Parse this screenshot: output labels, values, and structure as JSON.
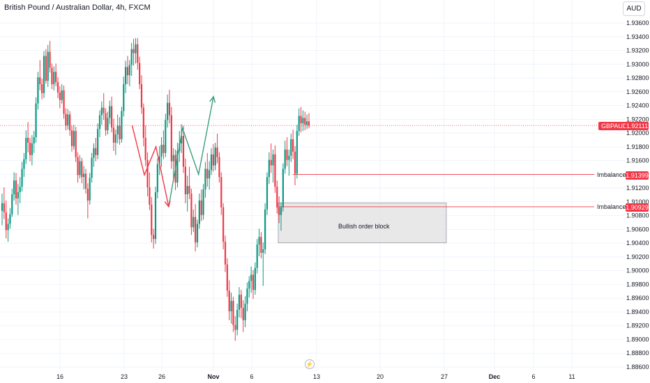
{
  "header": {
    "title": "British Pound / Australian Dollar, 4h, FXCM",
    "currency_button": "AUD"
  },
  "chart_data": {
    "type": "candlestick",
    "symbol": "GBPAUD",
    "ylim": [
      1.886,
      1.938
    ],
    "y_ticks": [
      "1.93600",
      "1.93400",
      "1.93200",
      "1.93000",
      "1.92800",
      "1.92600",
      "1.92400",
      "1.92200",
      "1.92000",
      "1.91800",
      "1.91600",
      "1.91400",
      "1.91200",
      "1.91000",
      "1.90800",
      "1.90600",
      "1.90400",
      "1.90200",
      "1.90000",
      "1.89800",
      "1.89600",
      "1.89400",
      "1.89200",
      "1.89000",
      "1.88800",
      "1.88600"
    ],
    "x_ticks": [
      "16",
      "23",
      "26",
      "Nov",
      "6",
      "13",
      "20",
      "27",
      "Dec",
      "6",
      "11"
    ],
    "last_price": {
      "label": "GBPAUD",
      "value": "1.92111",
      "y": 1.92111
    },
    "levels": [
      {
        "label": "Imbalance",
        "value": "1.91399",
        "y": 1.91399
      },
      {
        "label": "Imbalance",
        "value": "1.90929",
        "y": 1.90929
      }
    ],
    "order_block": {
      "label": "Bullish order block",
      "top": 1.90985,
      "bottom": 1.90405
    },
    "candles": [
      [
        1.9087,
        1.9112,
        1.9066,
        1.9098
      ],
      [
        1.9098,
        1.9121,
        1.9075,
        1.9085
      ],
      [
        1.9085,
        1.9102,
        1.9047,
        1.9059
      ],
      [
        1.9059,
        1.9076,
        1.9042,
        1.9068
      ],
      [
        1.9068,
        1.9091,
        1.9061,
        1.9082
      ],
      [
        1.9082,
        1.9119,
        1.9078,
        1.9111
      ],
      [
        1.9111,
        1.9143,
        1.9102,
        1.9131
      ],
      [
        1.9131,
        1.9142,
        1.9096,
        1.9105
      ],
      [
        1.9105,
        1.9126,
        1.9081,
        1.9114
      ],
      [
        1.9114,
        1.9136,
        1.9098,
        1.9122
      ],
      [
        1.9122,
        1.9158,
        1.9115,
        1.9148
      ],
      [
        1.9148,
        1.9171,
        1.9136,
        1.9162
      ],
      [
        1.9162,
        1.9204,
        1.9155,
        1.9193
      ],
      [
        1.9193,
        1.9216,
        1.9172,
        1.9186
      ],
      [
        1.9186,
        1.9193,
        1.9159,
        1.9168
      ],
      [
        1.9168,
        1.9197,
        1.9153,
        1.9185
      ],
      [
        1.9185,
        1.9203,
        1.9171,
        1.9194
      ],
      [
        1.9194,
        1.9252,
        1.9186,
        1.9243
      ],
      [
        1.9243,
        1.9289,
        1.9234,
        1.9281
      ],
      [
        1.9281,
        1.9306,
        1.9262,
        1.9271
      ],
      [
        1.9271,
        1.9279,
        1.9249,
        1.9258
      ],
      [
        1.9258,
        1.9319,
        1.9251,
        1.9312
      ],
      [
        1.9312,
        1.9322,
        1.9272,
        1.9276
      ],
      [
        1.9276,
        1.9328,
        1.9267,
        1.9318
      ],
      [
        1.9318,
        1.9334,
        1.9288,
        1.9295
      ],
      [
        1.9295,
        1.9301,
        1.9264,
        1.9271
      ],
      [
        1.9271,
        1.9297,
        1.9262,
        1.9289
      ],
      [
        1.9289,
        1.9301,
        1.9268,
        1.9274
      ],
      [
        1.9274,
        1.9281,
        1.9251,
        1.9259
      ],
      [
        1.9259,
        1.9268,
        1.9236,
        1.9248
      ],
      [
        1.9248,
        1.9271,
        1.9243,
        1.9262
      ],
      [
        1.9262,
        1.9269,
        1.9221,
        1.9228
      ],
      [
        1.9228,
        1.9236,
        1.9204,
        1.9211
      ],
      [
        1.9211,
        1.9235,
        1.9205,
        1.9227
      ],
      [
        1.9227,
        1.9232,
        1.9196,
        1.9204
      ],
      [
        1.9204,
        1.9211,
        1.9173,
        1.9181
      ],
      [
        1.9181,
        1.9212,
        1.9176,
        1.9203
      ],
      [
        1.9203,
        1.9209,
        1.9158,
        1.9165
      ],
      [
        1.9165,
        1.9172,
        1.9128,
        1.9139
      ],
      [
        1.9139,
        1.9168,
        1.9134,
        1.9159
      ],
      [
        1.9159,
        1.9164,
        1.9127,
        1.9136
      ],
      [
        1.9136,
        1.9152,
        1.9118,
        1.9141
      ],
      [
        1.9141,
        1.9148,
        1.9112,
        1.9119
      ],
      [
        1.9119,
        1.9127,
        1.9076,
        1.9102
      ],
      [
        1.9102,
        1.9142,
        1.9096,
        1.9135
      ],
      [
        1.9135,
        1.9171,
        1.9128,
        1.9164
      ],
      [
        1.9164,
        1.9185,
        1.9151,
        1.9178
      ],
      [
        1.9178,
        1.9193,
        1.9159,
        1.9168
      ],
      [
        1.9168,
        1.9214,
        1.9162,
        1.9206
      ],
      [
        1.9206,
        1.9233,
        1.9194,
        1.9226
      ],
      [
        1.9226,
        1.9246,
        1.9212,
        1.9237
      ],
      [
        1.9237,
        1.9258,
        1.9219,
        1.9229
      ],
      [
        1.9229,
        1.9236,
        1.9196,
        1.9204
      ],
      [
        1.9204,
        1.9231,
        1.9198,
        1.9222
      ],
      [
        1.9222,
        1.9247,
        1.9213,
        1.9239
      ],
      [
        1.9239,
        1.9253,
        1.9201,
        1.9208
      ],
      [
        1.9208,
        1.9221,
        1.9174,
        1.9186
      ],
      [
        1.9186,
        1.9205,
        1.9168,
        1.9198
      ],
      [
        1.9198,
        1.9227,
        1.9185,
        1.9211
      ],
      [
        1.9211,
        1.9223,
        1.9183,
        1.9191
      ],
      [
        1.9191,
        1.9238,
        1.9186,
        1.9232
      ],
      [
        1.9232,
        1.9282,
        1.9224,
        1.9271
      ],
      [
        1.9271,
        1.9305,
        1.9258,
        1.9296
      ],
      [
        1.9296,
        1.9312,
        1.9271,
        1.9284
      ],
      [
        1.9284,
        1.9306,
        1.9268,
        1.9299
      ],
      [
        1.9299,
        1.9331,
        1.9283,
        1.9322
      ],
      [
        1.9322,
        1.9337,
        1.9298,
        1.9316
      ],
      [
        1.9316,
        1.9338,
        1.9301,
        1.9329
      ],
      [
        1.9329,
        1.9338,
        1.9292,
        1.9302
      ],
      [
        1.9302,
        1.9311,
        1.9264,
        1.9271
      ],
      [
        1.9271,
        1.9284,
        1.9228,
        1.9237
      ],
      [
        1.9237,
        1.9243,
        1.9181,
        1.9193
      ],
      [
        1.9193,
        1.9211,
        1.9152,
        1.9161
      ],
      [
        1.9161,
        1.9172,
        1.9108,
        1.9121
      ],
      [
        1.9121,
        1.9143,
        1.9088,
        1.9096
      ],
      [
        1.9096,
        1.9107,
        1.9041,
        1.9052
      ],
      [
        1.9052,
        1.9061,
        1.9032,
        1.9046
      ],
      [
        1.9046,
        1.9122,
        1.9039,
        1.9114
      ],
      [
        1.9114,
        1.9163,
        1.9105,
        1.9155
      ],
      [
        1.9155,
        1.9181,
        1.9139,
        1.9166
      ],
      [
        1.9166,
        1.9194,
        1.9151,
        1.9183
      ],
      [
        1.9183,
        1.9204,
        1.9162,
        1.9171
      ],
      [
        1.9171,
        1.9228,
        1.9165,
        1.9219
      ],
      [
        1.9219,
        1.9256,
        1.9208,
        1.9244
      ],
      [
        1.9244,
        1.9263,
        1.9214,
        1.9226
      ],
      [
        1.9226,
        1.9238,
        1.9148,
        1.9159
      ],
      [
        1.9159,
        1.9178,
        1.9131,
        1.9168
      ],
      [
        1.9168,
        1.9176,
        1.9117,
        1.9128
      ],
      [
        1.9128,
        1.9186,
        1.9121,
        1.9174
      ],
      [
        1.9174,
        1.9203,
        1.9158,
        1.9185
      ],
      [
        1.9185,
        1.9213,
        1.9171,
        1.9196
      ],
      [
        1.9196,
        1.9211,
        1.9142,
        1.9151
      ],
      [
        1.9151,
        1.9163,
        1.9098,
        1.9111
      ],
      [
        1.9111,
        1.9138,
        1.9086,
        1.9123
      ],
      [
        1.9123,
        1.9151,
        1.9104,
        1.9112
      ],
      [
        1.9112,
        1.9119,
        1.9052,
        1.9063
      ],
      [
        1.9063,
        1.9089,
        1.9056,
        1.9078
      ],
      [
        1.9078,
        1.9097,
        1.9028,
        1.9041
      ],
      [
        1.9041,
        1.9074,
        1.9034,
        1.9068
      ],
      [
        1.9068,
        1.9112,
        1.9061,
        1.9102
      ],
      [
        1.9102,
        1.9118,
        1.9072,
        1.9081
      ],
      [
        1.9081,
        1.9126,
        1.9074,
        1.9118
      ],
      [
        1.9118,
        1.9158,
        1.9106,
        1.9148
      ],
      [
        1.9148,
        1.9171,
        1.9122,
        1.9134
      ],
      [
        1.9134,
        1.9159,
        1.9118,
        1.9146
      ],
      [
        1.9146,
        1.9178,
        1.9139,
        1.9169
      ],
      [
        1.9169,
        1.9184,
        1.9144,
        1.9153
      ],
      [
        1.9153,
        1.9186,
        1.9146,
        1.9179
      ],
      [
        1.9179,
        1.9199,
        1.9156,
        1.9165
      ],
      [
        1.9165,
        1.9172,
        1.9128,
        1.9136
      ],
      [
        1.9136,
        1.9143,
        1.9081,
        1.9092
      ],
      [
        1.9092,
        1.9098,
        1.9031,
        1.9042
      ],
      [
        1.9042,
        1.9051,
        1.8998,
        1.9009
      ],
      [
        1.9009,
        1.9018,
        1.8962,
        1.8971
      ],
      [
        1.8971,
        1.8986,
        1.8928,
        1.8941
      ],
      [
        1.8941,
        1.8968,
        1.8923,
        1.8956
      ],
      [
        1.8956,
        1.8962,
        1.8911,
        1.8921
      ],
      [
        1.8921,
        1.8934,
        1.8898,
        1.8914
      ],
      [
        1.8914,
        1.8952,
        1.8906,
        1.8943
      ],
      [
        1.8943,
        1.8976,
        1.8932,
        1.8965
      ],
      [
        1.8965,
        1.8972,
        1.8931,
        1.8946
      ],
      [
        1.8946,
        1.8957,
        1.8911,
        1.8928
      ],
      [
        1.8928,
        1.8963,
        1.8918,
        1.8952
      ],
      [
        1.8952,
        1.8983,
        1.8941,
        1.8974
      ],
      [
        1.8974,
        1.8992,
        1.8961,
        1.8985
      ],
      [
        1.8985,
        1.9006,
        1.8968,
        1.8994
      ],
      [
        1.8994,
        1.9001,
        1.8959,
        1.8972
      ],
      [
        1.8972,
        1.9012,
        1.8965,
        1.9004
      ],
      [
        1.9004,
        1.9046,
        1.8996,
        1.9038
      ],
      [
        1.9038,
        1.9061,
        1.9021,
        1.9049
      ],
      [
        1.9049,
        1.9056,
        1.9018,
        1.9026
      ],
      [
        1.9026,
        1.9041,
        1.8978,
        1.9031
      ],
      [
        1.9031,
        1.9098,
        1.9024,
        1.9089
      ],
      [
        1.9089,
        1.9143,
        1.9081,
        1.9136
      ],
      [
        1.9136,
        1.9172,
        1.9126,
        1.9161
      ],
      [
        1.9161,
        1.9185,
        1.9142,
        1.9153
      ],
      [
        1.9153,
        1.9176,
        1.9128,
        1.9169
      ],
      [
        1.9169,
        1.9182,
        1.9113,
        1.9122
      ],
      [
        1.9122,
        1.9131,
        1.9083,
        1.9092
      ],
      [
        1.9092,
        1.9108,
        1.9069,
        1.9081
      ],
      [
        1.9081,
        1.9099,
        1.9058,
        1.9092
      ],
      [
        1.9092,
        1.9156,
        1.9086,
        1.9148
      ],
      [
        1.9148,
        1.9189,
        1.9141,
        1.9176
      ],
      [
        1.9176,
        1.9194,
        1.9152,
        1.9161
      ],
      [
        1.9161,
        1.9176,
        1.9138,
        1.9167
      ],
      [
        1.9167,
        1.9199,
        1.9158,
        1.9191
      ],
      [
        1.9191,
        1.9205,
        1.9162,
        1.9173
      ],
      [
        1.9173,
        1.9181,
        1.9124,
        1.9141
      ],
      [
        1.9141,
        1.9212,
        1.9134,
        1.9203
      ],
      [
        1.9203,
        1.9236,
        1.9196,
        1.9225
      ],
      [
        1.9225,
        1.9238,
        1.9201,
        1.9214
      ],
      [
        1.9214,
        1.9233,
        1.9203,
        1.9222
      ],
      [
        1.9222,
        1.9231,
        1.9204,
        1.9212
      ],
      [
        1.9212,
        1.9227,
        1.9206,
        1.9217
      ],
      [
        1.9217,
        1.9229,
        1.9207,
        1.9211
      ]
    ],
    "projection_bearish": [
      [
        12.3,
        1.9211
      ],
      [
        14.5,
        1.9139
      ],
      [
        16.6,
        1.918
      ],
      [
        18.9,
        1.9093
      ]
    ],
    "projection_bullish": [
      [
        18.9,
        1.9093
      ],
      [
        21.4,
        1.9207
      ],
      [
        24.3,
        1.914
      ],
      [
        27.0,
        1.9253
      ]
    ],
    "colors": {
      "up": "#089981",
      "down": "#f23645",
      "projection_bear": "#f23645",
      "projection_bull": "#3a9e7e",
      "order_block": "#e0e0e0",
      "grid": "#f0f3fa"
    }
  }
}
